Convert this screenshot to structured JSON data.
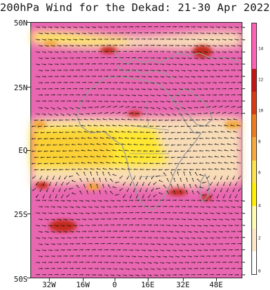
{
  "title": "200hPa Wind for the Dekad: 21-30 Apr 2022",
  "lat_labels": [
    "50N",
    "25N",
    "EQ",
    "25S",
    "50S"
  ],
  "lon_labels": [
    "32W",
    "16W",
    "0",
    "16E",
    "32E",
    "48E"
  ],
  "colorbar": {
    "labels": [
      "14",
      "12",
      "10",
      "8",
      "6",
      "4",
      "2",
      "0"
    ],
    "colors": [
      "#ff5fb4",
      "#ff5fb4",
      "#c41414",
      "#d93a12",
      "#ee7b1c",
      "#f8a93a",
      "#fde24a",
      "#fff000",
      "#fffbb0",
      "#fde7c9",
      "#ffffff"
    ]
  },
  "colors": {
    "background_speed": "#e966b0",
    "jet_pale": "#f8dcb8",
    "jet_yellow": "#ffe733",
    "jet_orange": "#f2a63a",
    "jet_red": "#c42a1e",
    "coastline": "#9a9a9a"
  }
}
